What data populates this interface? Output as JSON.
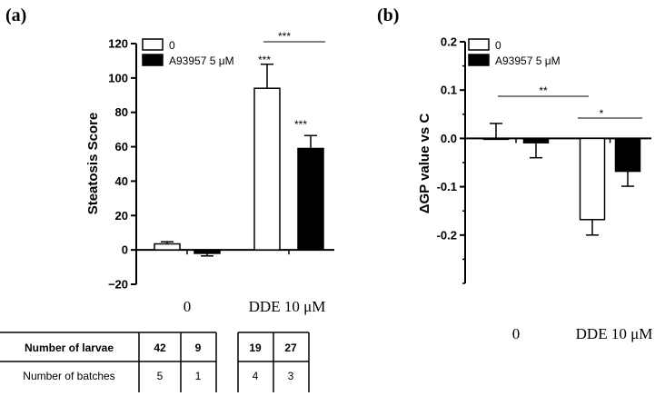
{
  "panels": {
    "a": {
      "label": "(a)"
    },
    "b": {
      "label": "(b)"
    }
  },
  "chart_data": [
    {
      "type": "bar",
      "panel": "a",
      "ylabel": "Steatosis Score",
      "ylim": [
        -20,
        120
      ],
      "yticks": [
        -20,
        0,
        20,
        40,
        60,
        80,
        100,
        120
      ],
      "ytick_labels": [
        "−20",
        "0",
        "20",
        "40",
        "60",
        "80",
        "100",
        "120"
      ],
      "categories": [
        "0",
        "DDE 10 μM"
      ],
      "series": [
        {
          "name": "0",
          "values": [
            3.5,
            94
          ],
          "errors": [
            1.2,
            14
          ],
          "fill": "#ffffff"
        },
        {
          "name": "A93957 5 μM",
          "values": [
            -2,
            59
          ],
          "errors": [
            1.5,
            7.5
          ],
          "fill": "#000000"
        }
      ],
      "annotations": [
        {
          "text": "***",
          "target": "DDE 10 μM / 0"
        },
        {
          "text": "***",
          "target": "DDE 10 μM / A93957 5 μM"
        },
        {
          "text": "***",
          "target": "bracket DDE 10 μM: 0 vs A93957 5 μM"
        }
      ],
      "legend_position": "top"
    },
    {
      "type": "bar",
      "panel": "b",
      "ylabel": "ΔGP value vs C",
      "ylim": [
        -0.3,
        0.2
      ],
      "yticks": [
        -0.2,
        -0.1,
        0.0,
        0.1,
        0.2
      ],
      "ytick_labels": [
        "-0.2",
        "-0.1",
        "0.0",
        "0.1",
        "0.2"
      ],
      "categories": [
        "0",
        "DDE 10 μM"
      ],
      "series": [
        {
          "name": "0",
          "values": [
            0.0,
            -0.168
          ],
          "errors": [
            0.031,
            0.032
          ],
          "fill": "#ffffff"
        },
        {
          "name": "A93957 5 μM",
          "values": [
            -0.009,
            -0.068
          ],
          "errors": [
            0.031,
            0.031
          ],
          "fill": "#000000"
        }
      ],
      "annotations": [
        {
          "text": "**",
          "target": "bracket 0/0 vs DDE 10 μM/0"
        },
        {
          "text": "*",
          "target": "bracket DDE 10 μM: 0 vs A93957 5 μM"
        }
      ],
      "legend_position": "top"
    }
  ],
  "table": {
    "rows": [
      {
        "label": "Number of larvae",
        "values": [
          "42",
          "9",
          "19",
          "27"
        ],
        "bold": true
      },
      {
        "label": "Number of batches",
        "values": [
          "5",
          "1",
          "4",
          "3"
        ],
        "bold": false
      }
    ]
  }
}
